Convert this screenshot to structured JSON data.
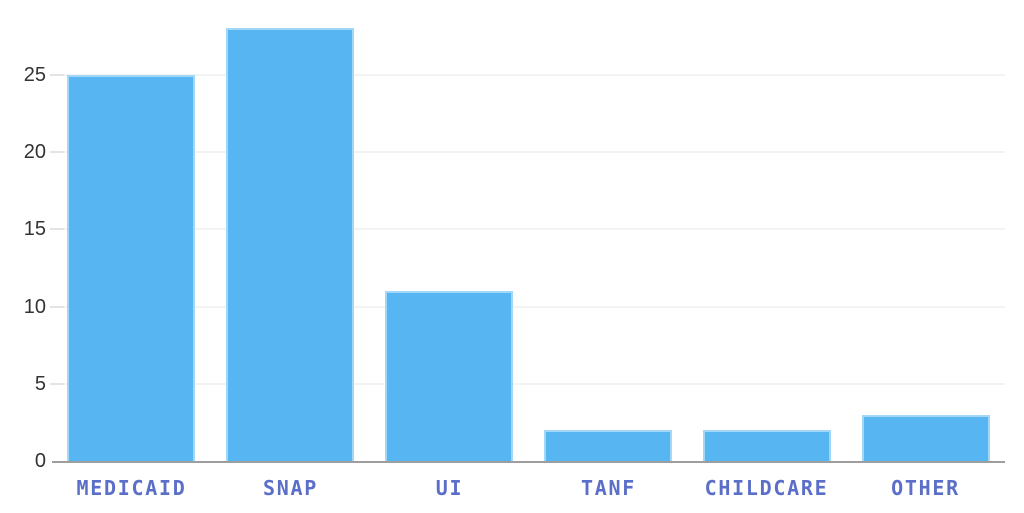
{
  "chart_data": {
    "type": "bar",
    "categories": [
      "MEDICAID",
      "SNAP",
      "UI",
      "TANF",
      "CHILDCARE",
      "OTHER"
    ],
    "values": [
      25,
      28,
      11,
      2,
      2,
      3
    ],
    "title": "",
    "xlabel": "",
    "ylabel": "",
    "ylim": [
      0,
      28
    ],
    "yticks": [
      0,
      5,
      10,
      15,
      20,
      25
    ],
    "grid": "horizontal",
    "legend": "none"
  },
  "colors": {
    "background": "#ffffff",
    "bar_fill": "#57b6f2",
    "bar_edge_highlight": "rgba(255,255,255,0.45)",
    "category_label": "#5b6fc8",
    "y_tick_label": "#333333",
    "axis_line": "#9e9e9e",
    "gridline": "#f3f3f3",
    "tick_mark": "#e4e4e4"
  }
}
